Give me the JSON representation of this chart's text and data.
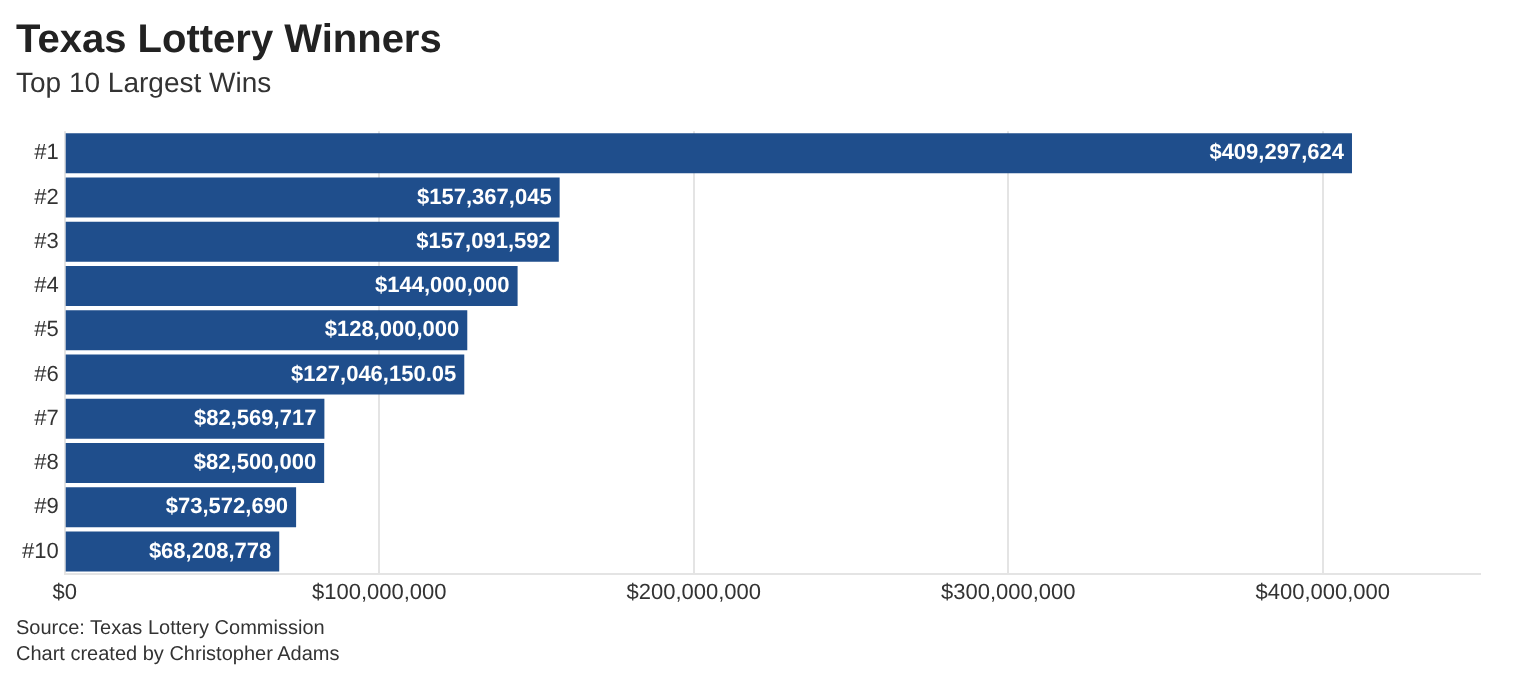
{
  "chart_data": {
    "type": "bar",
    "orientation": "horizontal",
    "title": "Texas Lottery Winners",
    "subtitle": "Top 10 Largest Wins",
    "categories": [
      "#1",
      "#2",
      "#3",
      "#4",
      "#5",
      "#6",
      "#7",
      "#8",
      "#9",
      "#10"
    ],
    "values": [
      409297624,
      157367045,
      157091592,
      144000000,
      128000000,
      127046150.05,
      82569717,
      82500000,
      73572690,
      68208778
    ],
    "value_labels": [
      "$409,297,624",
      "$157,367,045",
      "$157,091,592",
      "$144,000,000",
      "$128,000,000",
      "$127,046,150.05",
      "$82,569,717",
      "$82,500,000",
      "$73,572,690",
      "$68,208,778"
    ],
    "color": "#1f4e8c",
    "xlim": [
      0,
      450000000
    ],
    "xticks": [
      {
        "value": 0,
        "label": "$0"
      },
      {
        "value": 100000000,
        "label": "$100,000,000"
      },
      {
        "value": 200000000,
        "label": "$200,000,000"
      },
      {
        "value": 300000000,
        "label": "$300,000,000"
      },
      {
        "value": 400000000,
        "label": "$400,000,000"
      }
    ],
    "grid": "x",
    "legend": false,
    "annotations": [
      "Source: Texas Lottery Commission",
      "Chart created by Christopher Adams"
    ]
  }
}
